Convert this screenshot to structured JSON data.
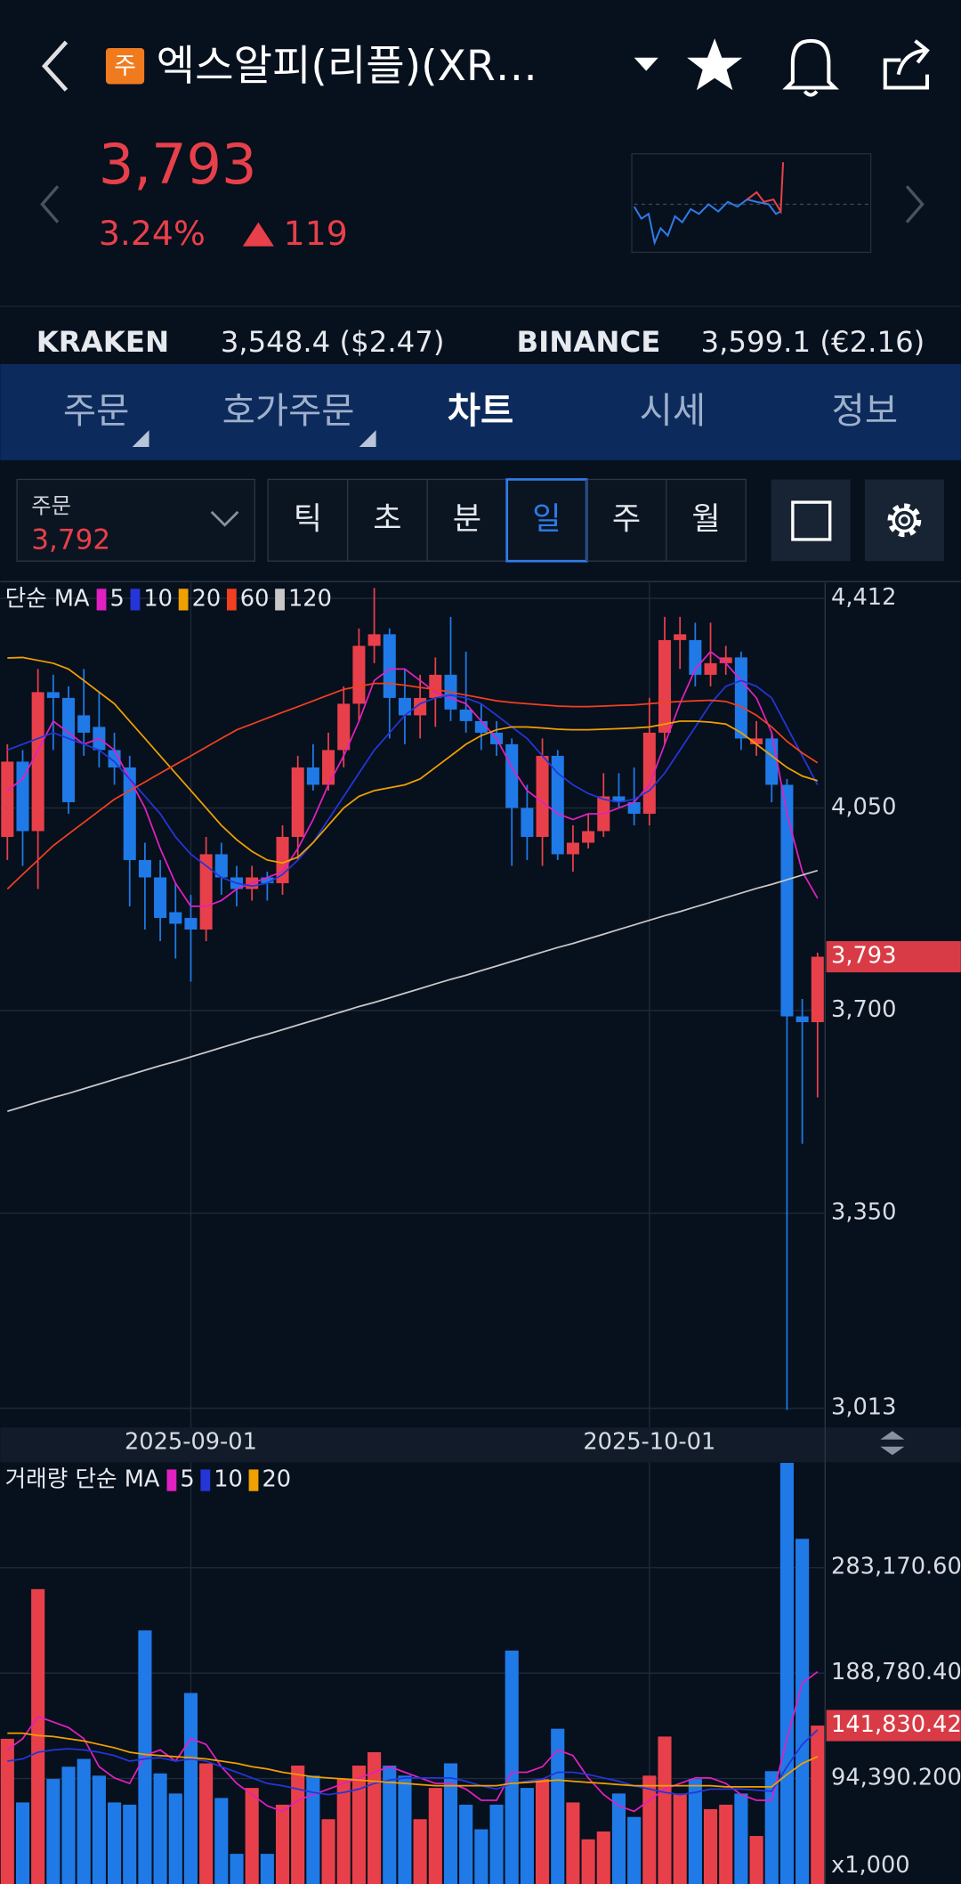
{
  "header": {
    "badge": "주",
    "title": "엑스알피(리플)(XR…",
    "price": "3,793",
    "change_rate": "3.24%",
    "change": "119"
  },
  "exchanges": [
    {
      "name": "KRAKEN",
      "quote": "3,548.4 ($2.47)"
    },
    {
      "name": "BINANCE",
      "quote": "3,599.1 (€2.16)"
    }
  ],
  "tabs": [
    "주문",
    "호가주문",
    "차트",
    "시세",
    "정보"
  ],
  "order": {
    "label": "주문",
    "price": "3,792"
  },
  "timeframes": [
    "틱",
    "초",
    "분",
    "일",
    "주",
    "월"
  ],
  "chart_data": [
    {
      "type": "candlestick",
      "legend_title": "단순 MA",
      "categories": [
        null,
        null,
        null,
        null,
        null,
        null,
        null,
        null,
        null,
        null,
        null,
        null,
        "2025-09-01",
        null,
        null,
        null,
        null,
        null,
        null,
        null,
        null,
        null,
        null,
        null,
        null,
        null,
        null,
        null,
        null,
        null,
        null,
        null,
        null,
        null,
        null,
        null,
        null,
        null,
        null,
        null,
        null,
        null,
        "2025-10-01",
        null,
        null,
        null,
        null,
        null,
        null,
        null,
        null,
        null,
        null,
        null
      ],
      "open": [
        4000,
        4130,
        4010,
        4250,
        4240,
        4210,
        4190,
        4150,
        4120,
        3960,
        3930,
        3870,
        3860,
        3840,
        3970,
        3930,
        3910,
        3930,
        3920,
        4000,
        4120,
        4090,
        4150,
        4230,
        4330,
        4350,
        4240,
        4210,
        4240,
        4280,
        4220,
        4200,
        4180,
        4160,
        4050,
        4000,
        4140,
        3970,
        3990,
        4010,
        4070,
        4060,
        4040,
        4180,
        4340,
        4340,
        4280,
        4300,
        4310,
        4160,
        4170,
        4090,
        3690,
        3680
      ],
      "high": [
        4160,
        4150,
        4290,
        4280,
        4260,
        4290,
        4250,
        4180,
        4140,
        3990,
        3960,
        3920,
        3900,
        4000,
        3990,
        3950,
        3950,
        3940,
        4020,
        4140,
        4160,
        4180,
        4260,
        4360,
        4430,
        4360,
        4290,
        4280,
        4310,
        4380,
        4320,
        4230,
        4200,
        4170,
        4090,
        4170,
        4150,
        4020,
        4040,
        4110,
        4110,
        4120,
        4240,
        4380,
        4380,
        4370,
        4370,
        4330,
        4320,
        4200,
        4180,
        4100,
        3720,
        3800
      ],
      "low": [
        3960,
        3950,
        3910,
        4150,
        4040,
        4140,
        4120,
        4090,
        3880,
        3840,
        3820,
        3790,
        3750,
        3820,
        3900,
        3880,
        3890,
        3890,
        3900,
        3960,
        4080,
        4080,
        4120,
        4200,
        4300,
        4170,
        4160,
        4170,
        4190,
        4200,
        4180,
        4150,
        4140,
        3950,
        3960,
        3950,
        3960,
        3940,
        3980,
        4000,
        4050,
        4020,
        4020,
        4160,
        4290,
        4260,
        4260,
        4280,
        4150,
        4140,
        4060,
        3010,
        3470,
        3550
      ],
      "close": [
        4130,
        4010,
        4250,
        4240,
        4060,
        4180,
        4150,
        4120,
        3960,
        3930,
        3860,
        3850,
        3840,
        3970,
        3930,
        3910,
        3930,
        3920,
        4000,
        4120,
        4090,
        4150,
        4230,
        4330,
        4350,
        4240,
        4210,
        4240,
        4280,
        4220,
        4200,
        4180,
        4160,
        4050,
        4000,
        4140,
        3970,
        3990,
        4010,
        4070,
        4060,
        4040,
        4180,
        4340,
        4350,
        4280,
        4300,
        4310,
        4170,
        4170,
        4090,
        3690,
        3680,
        3793
      ],
      "up_color": "#e8404a",
      "down_color": "#1f7ae8",
      "series": [
        {
          "name": "5",
          "color": "#e020c0",
          "values": [
            4080,
            4100,
            4150,
            4200,
            4180,
            4160,
            4170,
            4150,
            4100,
            4050,
            3980,
            3920,
            3880,
            3880,
            3890,
            3910,
            3920,
            3930,
            3940,
            3980,
            4030,
            4090,
            4140,
            4200,
            4270,
            4290,
            4290,
            4270,
            4250,
            4240,
            4230,
            4200,
            4170,
            4120,
            4080,
            4060,
            4040,
            4030,
            4040,
            4040,
            4050,
            4060,
            4090,
            4160,
            4230,
            4290,
            4320,
            4300,
            4270,
            4240,
            4180,
            4040,
            3940,
            3894
          ]
        },
        {
          "name": "10",
          "color": "#2436d8",
          "values": [
            4150,
            4160,
            4170,
            4180,
            4170,
            4160,
            4150,
            4130,
            4100,
            4070,
            4040,
            4000,
            3970,
            3950,
            3930,
            3920,
            3915,
            3920,
            3935,
            3960,
            3990,
            4030,
            4070,
            4110,
            4150,
            4180,
            4210,
            4230,
            4240,
            4245,
            4240,
            4230,
            4210,
            4190,
            4170,
            4140,
            4110,
            4090,
            4075,
            4065,
            4060,
            4065,
            4080,
            4110,
            4150,
            4190,
            4230,
            4260,
            4270,
            4260,
            4240,
            4190,
            4140,
            4090
          ]
        },
        {
          "name": "20",
          "color": "#f0a000",
          "values": [
            4309,
            4310,
            4305,
            4300,
            4290,
            4270,
            4250,
            4230,
            4200,
            4170,
            4140,
            4110,
            4080,
            4050,
            4020,
            3995,
            3975,
            3960,
            3955,
            3965,
            3990,
            4020,
            4050,
            4070,
            4080,
            4085,
            4090,
            4100,
            4120,
            4140,
            4160,
            4175,
            4185,
            4190,
            4190,
            4188,
            4186,
            4185,
            4185,
            4186,
            4187,
            4188,
            4190,
            4195,
            4200,
            4200,
            4198,
            4195,
            4180,
            4160,
            4140,
            4120,
            4105,
            4097
          ]
        },
        {
          "name": "60",
          "color": "#f04020",
          "values": [
            3910,
            3935,
            3960,
            3985,
            4005,
            4025,
            4045,
            4065,
            4080,
            4095,
            4110,
            4125,
            4140,
            4155,
            4170,
            4185,
            4195,
            4205,
            4215,
            4225,
            4235,
            4245,
            4255,
            4260,
            4265,
            4265,
            4262,
            4258,
            4255,
            4250,
            4245,
            4240,
            4235,
            4232,
            4230,
            4228,
            4226,
            4225,
            4225,
            4226,
            4227,
            4228,
            4230,
            4232,
            4234,
            4235,
            4236,
            4234,
            4225,
            4210,
            4190,
            4165,
            4145,
            4128
          ]
        },
        {
          "name": "120",
          "color": "#c8c8c8",
          "values": [
            3526,
            3534,
            3542,
            3550,
            3557,
            3565,
            3573,
            3581,
            3589,
            3597,
            3605,
            3612,
            3620,
            3628,
            3636,
            3644,
            3652,
            3659,
            3667,
            3675,
            3683,
            3691,
            3699,
            3707,
            3714,
            3722,
            3730,
            3738,
            3746,
            3754,
            3761,
            3769,
            3777,
            3785,
            3793,
            3801,
            3809,
            3816,
            3824,
            3832,
            3840,
            3848,
            3856,
            3864,
            3871,
            3879,
            3887,
            3895,
            3903,
            3911,
            3918,
            3926,
            3934,
            3942
          ]
        }
      ],
      "ylim": [
        2980,
        4439
      ],
      "yticks": [
        {
          "value": 4412,
          "label": "4,412"
        },
        {
          "value": 4050,
          "label": "4,050"
        },
        {
          "value": 3700,
          "label": "3,700"
        },
        {
          "value": 3350,
          "label": "3,350"
        },
        {
          "value": 3013,
          "label": "3,013"
        }
      ],
      "current": {
        "value": 3793,
        "label": "3,793"
      },
      "grid": true
    },
    {
      "type": "bar",
      "legend_title": "거래량 단순 MA",
      "values": [
        130000,
        73000,
        264000,
        94000,
        105000,
        112000,
        97000,
        73000,
        71000,
        227000,
        99000,
        81000,
        171000,
        108000,
        77000,
        27000,
        86000,
        27000,
        71000,
        106000,
        97000,
        58000,
        94000,
        106000,
        118000,
        106000,
        97000,
        58000,
        86000,
        108000,
        71000,
        49000,
        71000,
        209000,
        86000,
        94000,
        139000,
        73000,
        40000,
        47000,
        81000,
        60000,
        97000,
        132000,
        81000,
        94000,
        67000,
        71000,
        81000,
        43000,
        101000,
        377000,
        309000,
        141830.42
      ],
      "series": [
        {
          "name": "5",
          "color": "#e020c0",
          "values": [
            120000,
            130000,
            150000,
            145000,
            140000,
            130000,
            105000,
            95000,
            90000,
            115000,
            120000,
            110000,
            130000,
            125000,
            105000,
            90000,
            80000,
            70000,
            65000,
            75000,
            80000,
            85000,
            90000,
            95000,
            100000,
            105000,
            100000,
            95000,
            90000,
            90000,
            85000,
            75000,
            75000,
            100000,
            100000,
            105000,
            120000,
            115000,
            95000,
            80000,
            70000,
            65000,
            75000,
            85000,
            90000,
            95000,
            95000,
            90000,
            80000,
            75000,
            75000,
            130000,
            180000,
            190000
          ]
        },
        {
          "name": "10",
          "color": "#2436d8",
          "values": [
            110000,
            112000,
            118000,
            120000,
            121000,
            120000,
            118000,
            115000,
            110000,
            112000,
            113000,
            110000,
            112000,
            110000,
            105000,
            100000,
            95000,
            90000,
            88000,
            85000,
            82000,
            80000,
            82000,
            85000,
            90000,
            93000,
            95000,
            95000,
            95000,
            95000,
            92000,
            88000,
            85000,
            90000,
            92000,
            94000,
            100000,
            100000,
            98000,
            95000,
            92000,
            88000,
            85000,
            82000,
            80000,
            82000,
            85000,
            85000,
            85000,
            84000,
            83000,
            105000,
            125000,
            138000
          ]
        },
        {
          "name": "20",
          "color": "#f0a000",
          "values": [
            135000,
            135000,
            133000,
            132000,
            130000,
            128000,
            125000,
            122000,
            118000,
            116000,
            115000,
            114000,
            113000,
            112000,
            110000,
            108000,
            105000,
            103000,
            100000,
            98000,
            96000,
            95000,
            94000,
            93000,
            92000,
            91000,
            90000,
            89000,
            88000,
            88000,
            88000,
            88000,
            88000,
            90000,
            91000,
            92000,
            93000,
            92000,
            91000,
            90000,
            89000,
            88000,
            88000,
            88000,
            88000,
            88000,
            88000,
            87000,
            87000,
            87000,
            87000,
            98000,
            108000,
            114000
          ]
        }
      ],
      "ylim": [
        0,
        377561
      ],
      "yticks": [
        {
          "value": 94390.2,
          "label": "94,390.200"
        },
        {
          "value": 188780.401,
          "label": "188,780.401"
        },
        {
          "value": 283170.601,
          "label": "283,170.601"
        }
      ],
      "unit_label": "x1,000",
      "current": {
        "value": 141830.42,
        "label": "141,830.420"
      },
      "grid": true
    }
  ]
}
